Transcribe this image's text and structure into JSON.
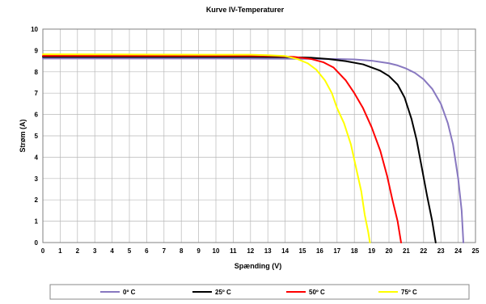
{
  "chart_data": {
    "type": "line",
    "title": "Kurve IV-Temperaturer",
    "xlabel": "Spænding (V)",
    "ylabel": "Strøm (A)",
    "xlim": [
      0,
      25
    ],
    "ylim": [
      0,
      10
    ],
    "x_ticks": [
      "0",
      "1",
      "2",
      "3",
      "4",
      "5",
      "6",
      "7",
      "8",
      "9",
      "10",
      "11",
      "12",
      "13",
      "14",
      "15",
      "16",
      "17",
      "18",
      "19",
      "20",
      "21",
      "22",
      "23",
      "24",
      "25"
    ],
    "y_ticks": [
      "0",
      "1",
      "2",
      "3",
      "4",
      "5",
      "6",
      "7",
      "8",
      "9",
      "10"
    ],
    "grid": true,
    "legend_position": "bottom",
    "series": [
      {
        "name": "0º C",
        "color": "#8878c0",
        "points": [
          [
            0,
            8.62
          ],
          [
            10,
            8.62
          ],
          [
            15,
            8.61
          ],
          [
            17,
            8.6
          ],
          [
            18,
            8.58
          ],
          [
            19,
            8.52
          ],
          [
            20,
            8.4
          ],
          [
            20.5,
            8.3
          ],
          [
            21,
            8.15
          ],
          [
            21.5,
            7.95
          ],
          [
            22,
            7.65
          ],
          [
            22.5,
            7.2
          ],
          [
            23,
            6.5
          ],
          [
            23.4,
            5.6
          ],
          [
            23.7,
            4.6
          ],
          [
            24,
            3.0
          ],
          [
            24.2,
            1.5
          ],
          [
            24.3,
            0
          ]
        ]
      },
      {
        "name": "25º C",
        "color": "#000000",
        "points": [
          [
            0,
            8.7
          ],
          [
            12,
            8.7
          ],
          [
            14,
            8.69
          ],
          [
            15.5,
            8.66
          ],
          [
            16.5,
            8.6
          ],
          [
            17.5,
            8.5
          ],
          [
            18.5,
            8.35
          ],
          [
            19.5,
            8.05
          ],
          [
            20,
            7.8
          ],
          [
            20.5,
            7.4
          ],
          [
            20.9,
            6.8
          ],
          [
            21.3,
            5.8
          ],
          [
            21.6,
            4.8
          ],
          [
            21.9,
            3.5
          ],
          [
            22.2,
            2.2
          ],
          [
            22.5,
            1.0
          ],
          [
            22.7,
            0
          ]
        ]
      },
      {
        "name": "50º C",
        "color": "#ff0000",
        "points": [
          [
            0,
            8.75
          ],
          [
            12,
            8.75
          ],
          [
            13.5,
            8.74
          ],
          [
            14.5,
            8.7
          ],
          [
            15.5,
            8.6
          ],
          [
            16.2,
            8.45
          ],
          [
            16.8,
            8.2
          ],
          [
            17.5,
            7.6
          ],
          [
            18,
            7.0
          ],
          [
            18.5,
            6.3
          ],
          [
            19,
            5.4
          ],
          [
            19.5,
            4.3
          ],
          [
            19.9,
            3.1
          ],
          [
            20.2,
            2.0
          ],
          [
            20.5,
            1.0
          ],
          [
            20.7,
            0
          ]
        ]
      },
      {
        "name": "75º C",
        "color": "#ffff00",
        "points": [
          [
            0,
            8.82
          ],
          [
            12,
            8.8
          ],
          [
            13,
            8.78
          ],
          [
            14,
            8.74
          ],
          [
            14.7,
            8.6
          ],
          [
            15.3,
            8.4
          ],
          [
            15.8,
            8.1
          ],
          [
            16.3,
            7.6
          ],
          [
            16.7,
            7.0
          ],
          [
            17,
            6.3
          ],
          [
            17.4,
            5.6
          ],
          [
            17.8,
            4.6
          ],
          [
            18.1,
            3.5
          ],
          [
            18.4,
            2.4
          ],
          [
            18.6,
            1.3
          ],
          [
            18.8,
            0.5
          ],
          [
            18.9,
            0
          ]
        ]
      }
    ]
  }
}
